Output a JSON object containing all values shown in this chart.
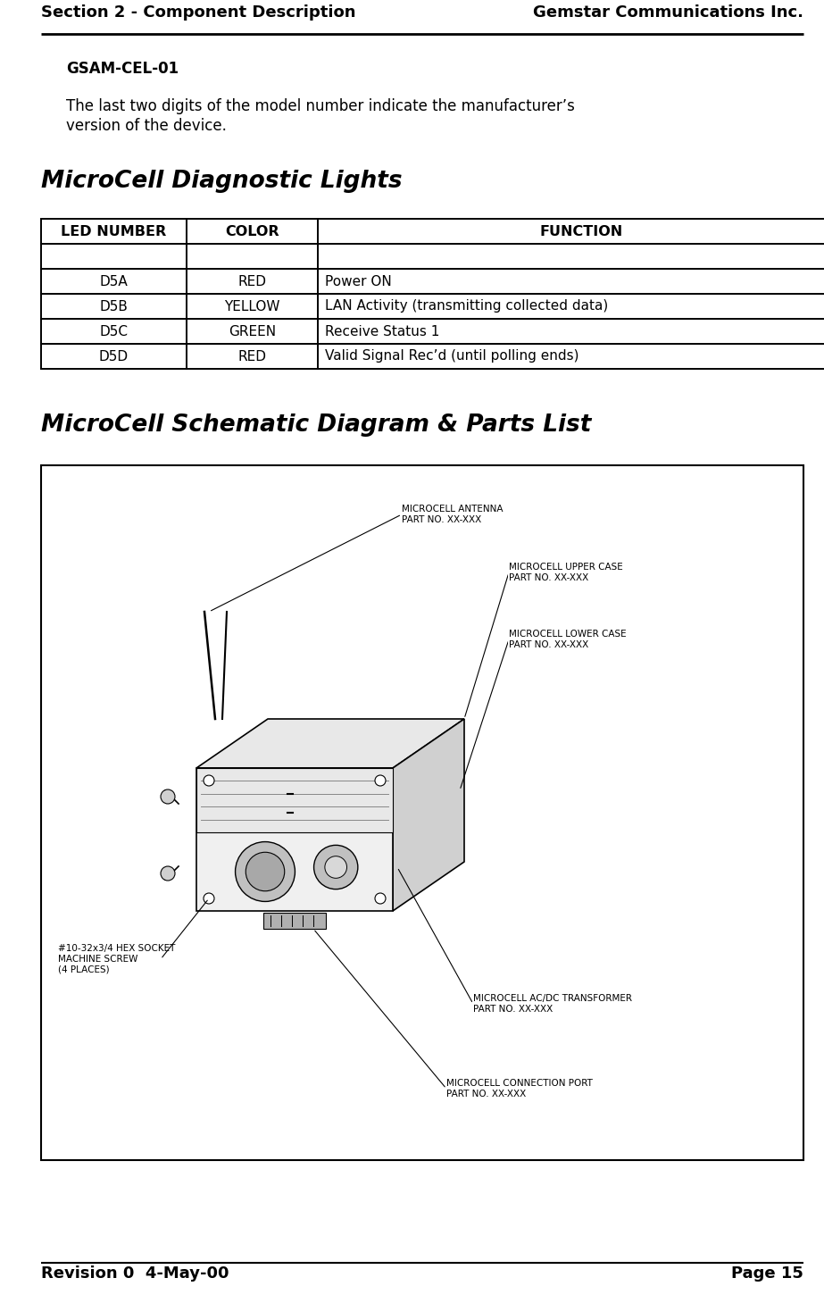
{
  "header_left": "Section 2 - Component Description",
  "header_right": "Gemstar Communications Inc.",
  "footer_left": "Revision 0  4-May-00",
  "footer_right": "Page 15",
  "bold_text": "GSAM-CEL-01",
  "period": ".",
  "body_text_line1": "The last two digits of the model number indicate the manufacturer’s",
  "body_text_line2": "version of the device.",
  "section1_title": "MicroCell Diagnostic Lights",
  "table_headers": [
    "LED NUMBER",
    "COLOR",
    "FUNCTION"
  ],
  "table_rows": [
    [
      "",
      "",
      ""
    ],
    [
      "D5A",
      "RED",
      "Power ON"
    ],
    [
      "D5B",
      "YELLOW",
      "LAN Activity (transmitting collected data)"
    ],
    [
      "D5C",
      "GREEN",
      "Receive Status 1"
    ],
    [
      "D5D",
      "RED",
      "Valid Signal Rec’d (until polling ends)"
    ]
  ],
  "section2_title": "MicroCell Schematic Diagram & Parts List",
  "bg_color": "#ffffff"
}
